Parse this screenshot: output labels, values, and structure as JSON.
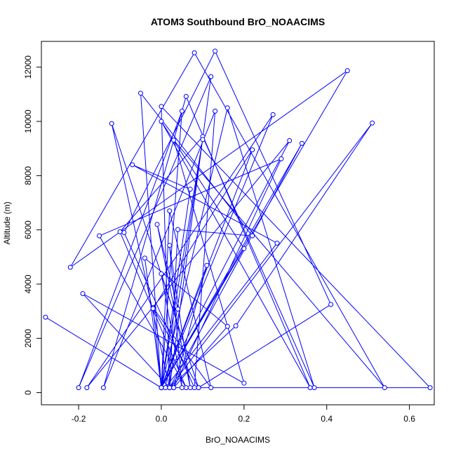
{
  "chart_data": {
    "type": "line",
    "title": "ATOM3 Southbound BrO_NOAACIMS",
    "xlabel": "BrO_NOAACIMS",
    "ylabel": "Altitude (m)",
    "xlim": [
      -0.29,
      0.66
    ],
    "ylim": [
      -450,
      12950
    ],
    "xticks": [
      -0.2,
      0.0,
      0.2,
      0.4,
      0.6
    ],
    "xtick_labels": [
      "-0.2",
      "0.0",
      "0.2",
      "0.4",
      "0.6"
    ],
    "yticks": [
      0,
      2000,
      4000,
      6000,
      8000,
      10000,
      12000
    ],
    "ytick_labels": [
      "0",
      "2000",
      "4000",
      "6000",
      "8000",
      "10000",
      "12000"
    ],
    "grid": false,
    "legend": "none",
    "marker": "open-circle",
    "series_color": "#0000ff",
    "series": [
      {
        "x": [
          -0.28,
          0.0,
          0.05,
          -0.2,
          0.12,
          0.02,
          -0.19,
          0.2,
          0.03,
          0.54,
          0.08,
          -0.22,
          0.45,
          0.0,
          0.27,
          -0.18,
          0.31,
          0.0,
          0.16,
          0.37,
          0.1,
          -0.1,
          0.06,
          -0.15,
          0.29,
          0.03,
          0.65,
          0.0,
          0.02,
          0.51,
          0.18,
          0.02,
          0.34,
          0.0,
          -0.05,
          0.22,
          0.04,
          0.02,
          -0.12,
          0.09,
          0.41,
          0.13,
          -0.09,
          0.08,
          0.13,
          -0.14,
          0.06,
          0.36,
          0.0,
          0.2,
          0.0,
          0.07,
          -0.07,
          0.28,
          0.01,
          0.1,
          0.0,
          -0.02,
          0.12,
          0.02,
          0.0,
          -0.04,
          0.16,
          0.03,
          0.11,
          0.0,
          0.22,
          -0.02,
          0.09,
          0.0,
          0.05,
          0.02,
          0.07,
          -0.01,
          0.04
        ],
        "y": [
          2780,
          180,
          10380,
          180,
          11650,
          180,
          3650,
          350,
          9310,
          180,
          12530,
          4620,
          11870,
          180,
          10250,
          180,
          9290,
          180,
          10500,
          180,
          9440,
          5930,
          180,
          5780,
          8620,
          180,
          180,
          10550,
          180,
          9940,
          2460,
          180,
          9190,
          180,
          11040,
          5780,
          6010,
          180,
          9920,
          180,
          3250,
          12590,
          5900,
          180,
          10380,
          180,
          10920,
          180,
          10000,
          5310,
          180,
          7500,
          8400,
          5510,
          180,
          9330,
          180,
          3130,
          180,
          6700,
          180,
          4960,
          2440,
          180,
          4690,
          180,
          8950,
          3100,
          180,
          4380,
          180,
          5430,
          180,
          6200,
          3080
        ]
      }
    ]
  }
}
